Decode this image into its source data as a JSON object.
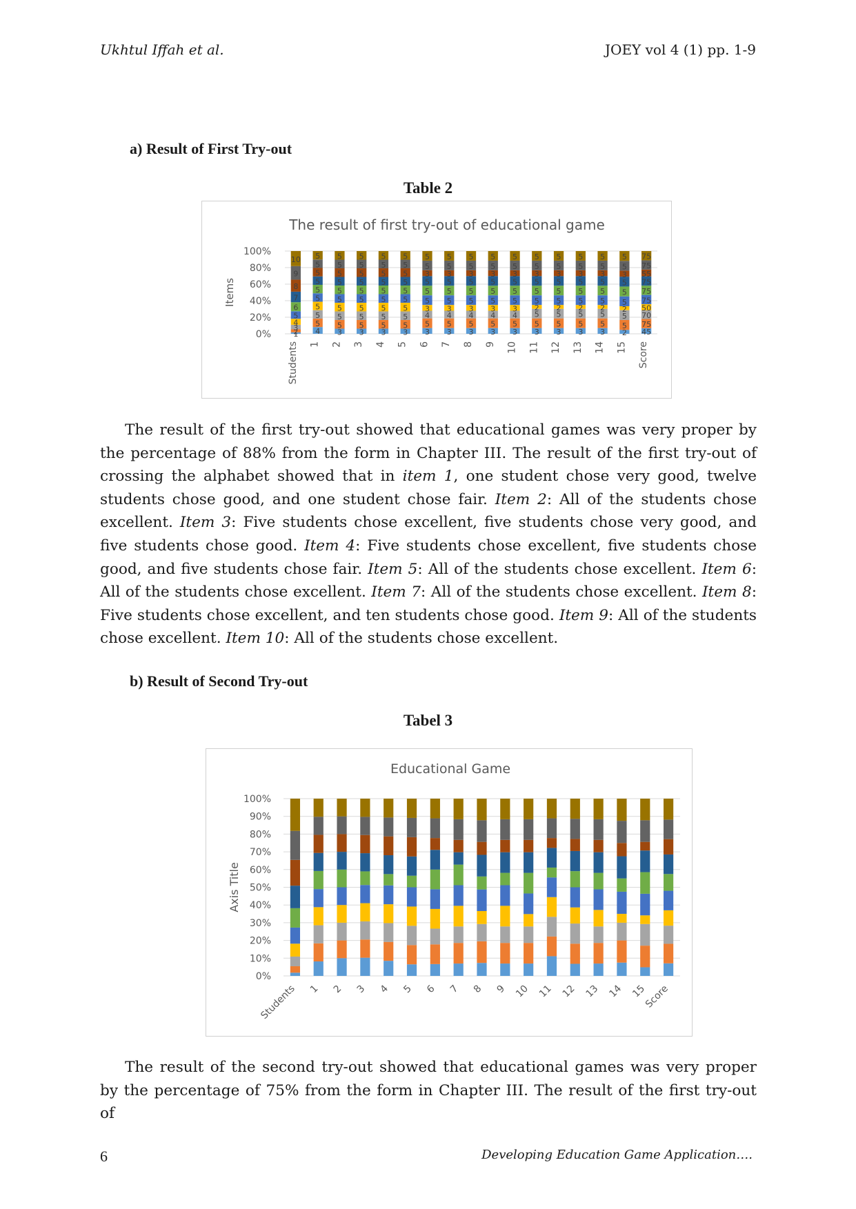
{
  "header": {
    "authors": "Ukhtul Iffah et al.",
    "journal": "JOEY vol 4 (1) pp. 1-9"
  },
  "section_a": {
    "heading": "a)  Result of First Try-out",
    "caption": "Table 2"
  },
  "section_b": {
    "heading": "b) Result of Second Try-out",
    "caption": "Tabel 3"
  },
  "paragraph1_html": "The result of the first try-out showed that educational games was very proper by the percentage of 88% from the form in Chapter III. The result of the first try-out of crossing the alphabet showed that in <i>item 1</i>, one student chose very good, twelve students chose good, and one student chose fair. <i>Item 2</i>: All of the students chose excellent. <i>Item 3</i>: Five students chose excellent, five students chose very good, and five students chose good. <i>Item 4</i>: Five students chose excellent, five students chose good, and five students chose fair. <i>Item 5</i>: All of the students chose excellent. <i>Item 6</i>: All of the students chose excellent. <i>Item 7</i>: All of the students chose excellent. <i>Item 8</i>: Five students chose excellent, and ten students chose good. <i>Item 9</i>: All of the students chose excellent. <i>Item 10</i>: All of the students chose excellent.",
  "paragraph2": "The result of the second try-out showed that educational games was very proper by the percentage of 75% from the form in Chapter III. The result of the first try-out of",
  "footer": {
    "page": "6",
    "title": "Developing Education Game Application…."
  },
  "colors": [
    "#5b9bd5",
    "#ed7d31",
    "#a5a5a5",
    "#ffc000",
    "#4472c4",
    "#70ad47",
    "#255e91",
    "#9e480e",
    "#636363",
    "#997300"
  ],
  "chart_data": [
    {
      "type": "bar",
      "stacked": "percent",
      "title": "The result of first try-out of educational game",
      "xlabel": "",
      "ylabel": "Items",
      "yticks": [
        "0%",
        "20%",
        "40%",
        "60%",
        "80%",
        "100%"
      ],
      "categories": [
        "Students",
        "1",
        "2",
        "3",
        "4",
        "5",
        "6",
        "7",
        "8",
        "9",
        "10",
        "11",
        "12",
        "13",
        "14",
        "15",
        "Score"
      ],
      "series": [
        {
          "values": [
            1,
            4,
            3,
            3,
            3,
            3,
            3,
            3,
            3,
            3,
            3,
            3,
            3,
            3,
            3,
            2,
            45
          ]
        },
        {
          "values": [
            2,
            5,
            5,
            5,
            5,
            5,
            5,
            5,
            5,
            5,
            5,
            5,
            5,
            5,
            5,
            5,
            75
          ]
        },
        {
          "values": [
            3,
            5,
            5,
            5,
            5,
            5,
            4,
            4,
            4,
            4,
            4,
            5,
            5,
            5,
            5,
            5,
            70
          ]
        },
        {
          "values": [
            4,
            5,
            5,
            5,
            5,
            5,
            3,
            3,
            3,
            3,
            3,
            2,
            2,
            2,
            2,
            2,
            50
          ]
        },
        {
          "values": [
            5,
            5,
            5,
            5,
            5,
            5,
            5,
            5,
            5,
            5,
            5,
            5,
            5,
            5,
            5,
            5,
            75
          ]
        },
        {
          "values": [
            6,
            5,
            5,
            5,
            5,
            5,
            5,
            5,
            5,
            5,
            5,
            5,
            5,
            5,
            5,
            5,
            75
          ]
        },
        {
          "values": [
            7,
            5,
            5,
            5,
            5,
            5,
            5,
            5,
            5,
            5,
            5,
            5,
            5,
            5,
            5,
            5,
            75
          ]
        },
        {
          "values": [
            8,
            5,
            5,
            5,
            5,
            5,
            3,
            3,
            3,
            3,
            3,
            3,
            3,
            3,
            3,
            3,
            55
          ]
        },
        {
          "values": [
            9,
            5,
            5,
            5,
            5,
            5,
            5,
            5,
            5,
            5,
            5,
            5,
            5,
            5,
            5,
            5,
            75
          ]
        },
        {
          "values": [
            10,
            5,
            5,
            5,
            5,
            5,
            5,
            5,
            5,
            5,
            5,
            5,
            5,
            5,
            5,
            5,
            75
          ]
        }
      ]
    },
    {
      "type": "bar",
      "stacked": "percent",
      "title": "Educational Game",
      "xlabel": "",
      "ylabel": "Axis Title",
      "yticks": [
        "0%",
        "10%",
        "20%",
        "30%",
        "40%",
        "50%",
        "60%",
        "70%",
        "80%",
        "90%",
        "100%"
      ],
      "categories": [
        "Students",
        "1",
        "2",
        "3",
        "4",
        "5",
        "6",
        "7",
        "8",
        "9",
        "10",
        "11",
        "12",
        "13",
        "14",
        "15",
        "Score"
      ],
      "series": [
        {
          "values": [
            1,
            4,
            4,
            4,
            4,
            3,
            3,
            3,
            3,
            3,
            3,
            4,
            3,
            3,
            3,
            2,
            45
          ]
        },
        {
          "values": [
            2,
            5,
            4,
            4,
            5,
            5,
            5,
            5,
            5,
            5,
            5,
            4,
            5,
            5,
            5,
            5,
            70
          ]
        },
        {
          "values": [
            3,
            5,
            4,
            4,
            5,
            5,
            4,
            4,
            4,
            4,
            4,
            4,
            5,
            4,
            4,
            5,
            65
          ]
        },
        {
          "values": [
            4,
            5,
            4,
            4,
            5,
            5,
            5,
            5,
            3,
            5,
            3,
            4,
            4,
            4,
            2,
            2,
            55
          ]
        },
        {
          "values": [
            5,
            5,
            4,
            4,
            5,
            5,
            5,
            5,
            5,
            5,
            5,
            4,
            5,
            5,
            5,
            5,
            70
          ]
        },
        {
          "values": [
            6,
            5,
            4,
            3,
            3,
            3,
            5,
            5,
            3,
            3,
            5,
            2,
            4,
            4,
            3,
            5,
            60
          ]
        },
        {
          "values": [
            7,
            5,
            4,
            4,
            5,
            5,
            5,
            3,
            5,
            5,
            5,
            4,
            5,
            5,
            5,
            5,
            70
          ]
        },
        {
          "values": [
            8,
            5,
            4,
            4,
            5,
            5,
            3,
            3,
            3,
            3,
            3,
            2,
            3,
            3,
            3,
            2,
            55
          ]
        },
        {
          "values": [
            9,
            5,
            4,
            4,
            5,
            5,
            5,
            5,
            5,
            5,
            5,
            4,
            5,
            5,
            5,
            5,
            70
          ]
        },
        {
          "values": [
            10,
            5,
            4,
            4,
            5,
            5,
            5,
            5,
            5,
            5,
            5,
            4,
            5,
            5,
            5,
            5,
            75
          ]
        }
      ]
    }
  ]
}
